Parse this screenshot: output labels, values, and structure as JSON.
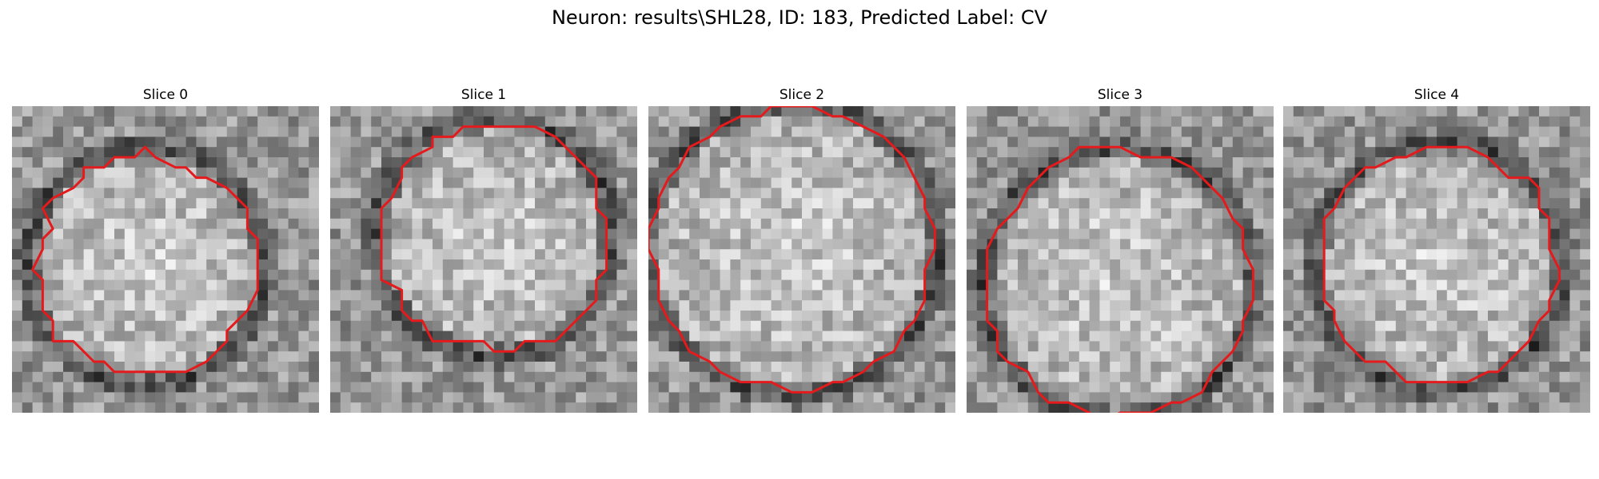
{
  "figure": {
    "title": "Neuron: results\\SHL28, ID: 183, Predicted Label: CV"
  },
  "slices": [
    {
      "title": "Slice 0",
      "image": "grayscale microscopy patch with circular cell body and red segmentation contour"
    },
    {
      "title": "Slice 1",
      "image": "grayscale microscopy patch with circular cell body and red segmentation contour"
    },
    {
      "title": "Slice 2",
      "image": "grayscale microscopy patch with circular cell body and red segmentation contour"
    },
    {
      "title": "Slice 3",
      "image": "grayscale microscopy patch with circular cell body and red segmentation contour"
    },
    {
      "title": "Slice 4",
      "image": "grayscale microscopy patch with circular cell body and red segmentation contour"
    }
  ],
  "colors": {
    "contour": "#e41a1c",
    "background": "#ffffff"
  }
}
